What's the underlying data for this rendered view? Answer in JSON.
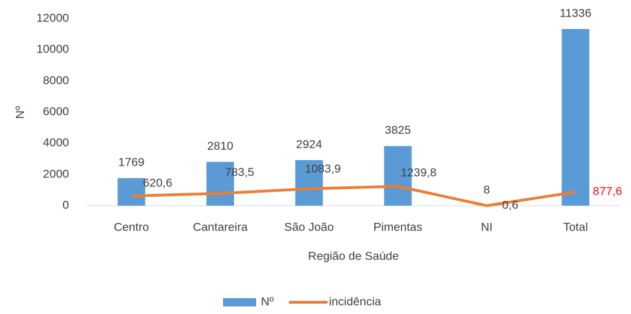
{
  "chart_data": {
    "type": "bar",
    "x_label": "Região de Saúde",
    "y_label": "Nº",
    "categories": [
      "Centro",
      "Cantareira",
      "São João",
      "Pimentas",
      "NI",
      "Total"
    ],
    "series": [
      {
        "name": "Nº",
        "type": "bar",
        "color": "#5b9bd5",
        "values": [
          1769,
          2810,
          2924,
          3825,
          8,
          11336
        ]
      },
      {
        "name": "incidência",
        "type": "line",
        "color": "#ed7d31",
        "values": [
          620.6,
          783.5,
          1083.9,
          1239.8,
          0.6,
          877.6
        ],
        "value_labels": [
          "620,6",
          "783,5",
          "1083,9",
          "1239,8",
          "0,6",
          "877,6"
        ],
        "label_colors": [
          "#404040",
          "#404040",
          "#404040",
          "#404040",
          "#404040",
          "#ff0000"
        ]
      }
    ],
    "ylim": [
      0,
      12000
    ],
    "yticks": [
      0,
      2000,
      4000,
      6000,
      8000,
      10000,
      12000
    ],
    "grid": false,
    "legend": "bottom"
  }
}
